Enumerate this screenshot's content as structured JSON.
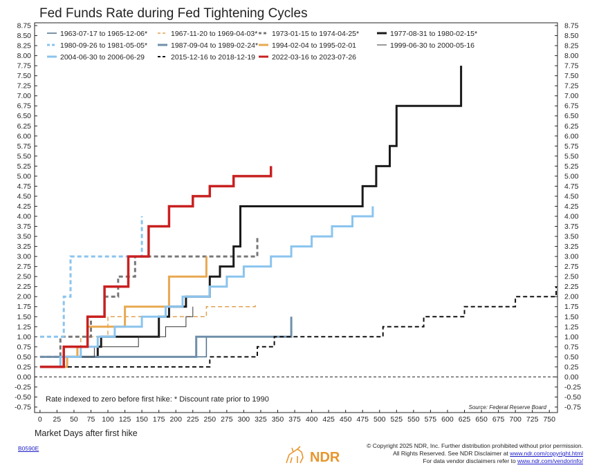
{
  "chart_data": {
    "type": "line",
    "title": "Fed Funds Rate during Fed Tightening Cycles",
    "xlabel": "Market Days after first hike",
    "ylabel": "",
    "xlim": [
      -8,
      762
    ],
    "ylim": [
      -0.75,
      8.75
    ],
    "x_ticks": [
      0,
      25,
      50,
      75,
      100,
      125,
      150,
      175,
      200,
      225,
      250,
      275,
      300,
      325,
      350,
      375,
      400,
      425,
      450,
      475,
      500,
      525,
      550,
      575,
      600,
      625,
      650,
      675,
      700,
      725,
      750
    ],
    "y_ticks": [
      "8.75",
      "8.50",
      "8.25",
      "8.00",
      "7.75",
      "7.50",
      "7.25",
      "7.00",
      "6.75",
      "6.50",
      "6.25",
      "6.00",
      "5.75",
      "5.50",
      "5.25",
      "5.00",
      "4.75",
      "4.50",
      "4.25",
      "4.00",
      "3.75",
      "3.50",
      "3.25",
      "3.00",
      "2.75",
      "2.50",
      "2.25",
      "2.00",
      "1.75",
      "1.50",
      "1.25",
      "1.00",
      "0.75",
      "0.50",
      "0.25",
      "0.00",
      "-0.25",
      "-0.50",
      "-0.75"
    ],
    "grid": false,
    "zero_line": "dashed",
    "note": "Rate indexed to zero before first hike: * Discount rate prior to 1990",
    "source": "Source:  Federal Reserve Board",
    "legend_position": "top-left",
    "series": [
      {
        "name": "1963-07-17 to 1965-12-06*",
        "color": "#4a6f8a",
        "width": 1.5,
        "dash": "",
        "points": [
          [
            0,
            0.5
          ],
          [
            245,
            0.5
          ],
          [
            245,
            1.0
          ],
          [
            300,
            1.0
          ]
        ]
      },
      {
        "name": "1967-11-20 to 1969-04-03*",
        "color": "#e0a050",
        "width": 1.5,
        "dash": "6,4",
        "points": [
          [
            0,
            0.5
          ],
          [
            60,
            0.5
          ],
          [
            60,
            1.0
          ],
          [
            100,
            1.0
          ],
          [
            100,
            1.5
          ],
          [
            245,
            1.5
          ],
          [
            245,
            1.75
          ],
          [
            317,
            1.75
          ],
          [
            317,
            1.85
          ]
        ]
      },
      {
        "name": "1973-01-15 to 1974-04-25*",
        "color": "#777777",
        "width": 3,
        "dash": "6,4",
        "points": [
          [
            0,
            0.5
          ],
          [
            30,
            0.5
          ],
          [
            30,
            1.0
          ],
          [
            75,
            1.0
          ],
          [
            75,
            1.5
          ],
          [
            95,
            1.5
          ],
          [
            95,
            2.0
          ],
          [
            115,
            2.0
          ],
          [
            115,
            2.5
          ],
          [
            140,
            2.5
          ],
          [
            140,
            3.0
          ],
          [
            160,
            3.0
          ],
          [
            160,
            3.0
          ],
          [
            320,
            3.0
          ],
          [
            320,
            3.5
          ]
        ]
      },
      {
        "name": "1977-08-31 to 1980-02-15*",
        "color": "#1a1a1a",
        "width": 3,
        "dash": "",
        "points": [
          [
            0,
            0.25
          ],
          [
            35,
            0.25
          ],
          [
            35,
            0.5
          ],
          [
            85,
            0.5
          ],
          [
            85,
            0.75
          ],
          [
            90,
            0.75
          ],
          [
            90,
            1.0
          ],
          [
            175,
            1.0
          ],
          [
            175,
            1.5
          ],
          [
            190,
            1.5
          ],
          [
            190,
            1.75
          ],
          [
            215,
            1.75
          ],
          [
            215,
            2.0
          ],
          [
            250,
            2.0
          ],
          [
            250,
            2.5
          ],
          [
            265,
            2.5
          ],
          [
            265,
            2.75
          ],
          [
            285,
            2.75
          ],
          [
            285,
            3.25
          ],
          [
            295,
            3.25
          ],
          [
            295,
            4.25
          ],
          [
            475,
            4.25
          ],
          [
            475,
            4.75
          ],
          [
            495,
            4.75
          ],
          [
            495,
            5.25
          ],
          [
            515,
            5.25
          ],
          [
            515,
            5.75
          ],
          [
            525,
            5.75
          ],
          [
            525,
            6.75
          ],
          [
            620,
            6.75
          ],
          [
            620,
            7.75
          ]
        ]
      },
      {
        "name": "1980-09-26 to 1981-05-05*",
        "color": "#8ac4ee",
        "width": 3,
        "dash": "6,4",
        "points": [
          [
            0,
            1.0
          ],
          [
            35,
            1.0
          ],
          [
            35,
            2.0
          ],
          [
            45,
            2.0
          ],
          [
            45,
            3.0
          ],
          [
            150,
            3.0
          ],
          [
            150,
            4.0
          ]
        ]
      },
      {
        "name": "1987-09-04 to 1989-02-24*",
        "color": "#6f8faa",
        "width": 3,
        "dash": "",
        "points": [
          [
            0,
            0.5
          ],
          [
            230,
            0.5
          ],
          [
            230,
            1.0
          ],
          [
            370,
            1.0
          ],
          [
            370,
            1.5
          ]
        ]
      },
      {
        "name": "1994-02-04 to 1995-02-01",
        "color": "#e8a850",
        "width": 3,
        "dash": "",
        "points": [
          [
            0,
            0.25
          ],
          [
            40,
            0.25
          ],
          [
            40,
            0.5
          ],
          [
            55,
            0.5
          ],
          [
            55,
            0.75
          ],
          [
            70,
            0.75
          ],
          [
            70,
            1.25
          ],
          [
            125,
            1.25
          ],
          [
            125,
            1.75
          ],
          [
            190,
            1.75
          ],
          [
            190,
            2.5
          ],
          [
            245,
            2.5
          ],
          [
            245,
            3.0
          ]
        ]
      },
      {
        "name": "1999-06-30 to 2000-05-16",
        "color": "#333333",
        "width": 1,
        "dash": "",
        "points": [
          [
            0,
            0.25
          ],
          [
            35,
            0.25
          ],
          [
            35,
            0.5
          ],
          [
            80,
            0.5
          ],
          [
            80,
            0.75
          ],
          [
            145,
            0.75
          ],
          [
            145,
            1.0
          ],
          [
            185,
            1.0
          ],
          [
            185,
            1.25
          ],
          [
            215,
            1.25
          ],
          [
            215,
            1.5
          ],
          [
            225,
            1.5
          ],
          [
            225,
            1.75
          ]
        ]
      },
      {
        "name": "2004-06-30 to 2006-06-29",
        "color": "#8ac4ee",
        "width": 3,
        "dash": "",
        "points": [
          [
            0,
            0.25
          ],
          [
            30,
            0.25
          ],
          [
            30,
            0.5
          ],
          [
            60,
            0.5
          ],
          [
            60,
            0.75
          ],
          [
            85,
            0.75
          ],
          [
            85,
            1.0
          ],
          [
            110,
            1.0
          ],
          [
            110,
            1.25
          ],
          [
            150,
            1.25
          ],
          [
            150,
            1.5
          ],
          [
            185,
            1.5
          ],
          [
            185,
            1.75
          ],
          [
            210,
            1.75
          ],
          [
            210,
            2.0
          ],
          [
            250,
            2.0
          ],
          [
            250,
            2.25
          ],
          [
            275,
            2.25
          ],
          [
            275,
            2.5
          ],
          [
            300,
            2.5
          ],
          [
            300,
            2.75
          ],
          [
            340,
            2.75
          ],
          [
            340,
            3.0
          ],
          [
            370,
            3.0
          ],
          [
            370,
            3.25
          ],
          [
            400,
            3.25
          ],
          [
            400,
            3.5
          ],
          [
            430,
            3.5
          ],
          [
            430,
            3.75
          ],
          [
            460,
            3.75
          ],
          [
            460,
            4.0
          ],
          [
            490,
            4.0
          ],
          [
            490,
            4.25
          ]
        ]
      },
      {
        "name": "2015-12-16 to 2018-12-19",
        "color": "#111111",
        "width": 2,
        "dash": "6,4",
        "points": [
          [
            0,
            0.25
          ],
          [
            250,
            0.25
          ],
          [
            250,
            0.5
          ],
          [
            320,
            0.5
          ],
          [
            320,
            0.75
          ],
          [
            345,
            0.75
          ],
          [
            345,
            1.0
          ],
          [
            505,
            1.0
          ],
          [
            505,
            1.25
          ],
          [
            565,
            1.25
          ],
          [
            565,
            1.5
          ],
          [
            625,
            1.5
          ],
          [
            625,
            1.75
          ],
          [
            700,
            1.75
          ],
          [
            700,
            2.0
          ],
          [
            760,
            2.0
          ],
          [
            760,
            2.25
          ]
        ]
      },
      {
        "name": "2022-03-16 to 2023-07-26",
        "color": "#c82020",
        "width": 3.5,
        "dash": "",
        "points": [
          [
            0,
            0.25
          ],
          [
            35,
            0.25
          ],
          [
            35,
            0.75
          ],
          [
            70,
            0.75
          ],
          [
            70,
            1.5
          ],
          [
            95,
            1.5
          ],
          [
            95,
            2.25
          ],
          [
            130,
            2.25
          ],
          [
            130,
            3.0
          ],
          [
            160,
            3.0
          ],
          [
            160,
            3.75
          ],
          [
            190,
            3.75
          ],
          [
            190,
            4.25
          ],
          [
            225,
            4.25
          ],
          [
            225,
            4.5
          ],
          [
            250,
            4.5
          ],
          [
            250,
            4.75
          ],
          [
            285,
            4.75
          ],
          [
            285,
            5.0
          ],
          [
            340,
            5.0
          ],
          [
            340,
            5.25
          ]
        ]
      }
    ]
  },
  "footer": {
    "chart_code": "B0590E",
    "copyright_line": "© Copyright 2025 NDR, Inc. Further distribution prohibited without prior permission.",
    "rights_prefix": "All Rights Reserved. See NDR Disclaimer at ",
    "rights_link": "www.ndr.com/copyright.html",
    "vendor_prefix": "For data vendor disclaimers refer to ",
    "vendor_link": "www.ndr.com/vendorinfo/",
    "logo_text": "NDR",
    "logo_color": "#e8962e"
  }
}
